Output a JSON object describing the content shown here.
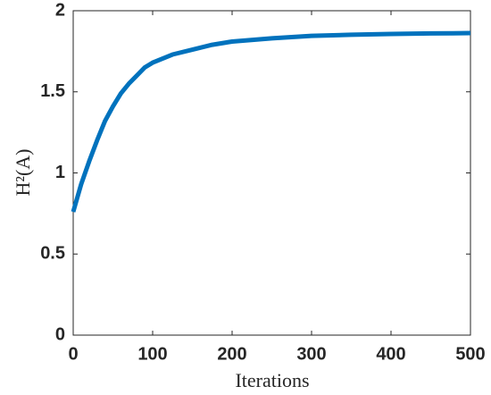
{
  "chart_data": {
    "type": "line",
    "xlabel": "Iterations",
    "ylabel": "H²(A)",
    "x": [
      0,
      10,
      20,
      30,
      40,
      50,
      60,
      70,
      80,
      90,
      100,
      125,
      150,
      175,
      200,
      250,
      300,
      350,
      400,
      450,
      500
    ],
    "values": [
      0.76,
      0.93,
      1.07,
      1.2,
      1.32,
      1.41,
      1.49,
      1.55,
      1.6,
      1.65,
      1.68,
      1.73,
      1.76,
      1.79,
      1.81,
      1.83,
      1.845,
      1.852,
      1.857,
      1.86,
      1.862
    ],
    "color": "#0072bd",
    "xlim": [
      0,
      500
    ],
    "xticks": [
      0,
      100,
      200,
      300,
      400,
      500
    ],
    "ylim": [
      0,
      2
    ],
    "yticks": [
      0,
      0.5,
      1,
      1.5,
      2
    ],
    "grid": false
  }
}
